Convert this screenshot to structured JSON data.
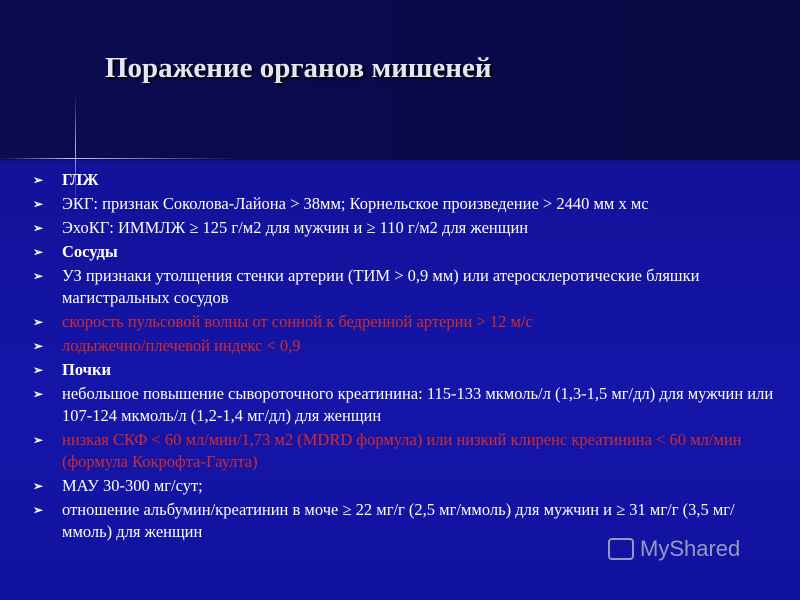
{
  "title": "Поражение органов мишеней",
  "bullet_glyph": "➢",
  "items": [
    {
      "text": "ГЛЖ",
      "style": "bold"
    },
    {
      "text": "ЭКГ: признак Соколова-Лайона > 38мм; Корнельское произведение > 2440 мм х мс",
      "style": "normal"
    },
    {
      "text": "ЭхоКГ: ИММЛЖ ≥ 125 г/м2 для мужчин и ≥ 110 г/м2 для женщин",
      "style": "normal"
    },
    {
      "text": "Сосуды",
      "style": "bold"
    },
    {
      "text": "УЗ признаки утолщения стенки артерии (ТИМ > 0,9 мм) или атеросклеротические бляшки магистральных сосудов",
      "style": "normal"
    },
    {
      "text": "скорость пульсовой волны от сонной к бедренной артерии > 12 м/с",
      "style": "red"
    },
    {
      "text": "лодыжечно/плечевой индекс < 0,9",
      "style": "red"
    },
    {
      "text": "Почки",
      "style": "bold"
    },
    {
      "text": "небольшое повышение сывороточного креатинина: 115-133 мкмоль/л (1,3-1,5 мг/дл) для мужчин или 107-124 мкмоль/л (1,2-1,4 мг/дл) для женщин",
      "style": "normal"
    },
    {
      "text": "низкая СКФ < 60 мл/мин/1,73 м2 (MDRD формула) или низкий клиренс креатинина < 60 мл/мин (формула Кокрофта-Гаулта)",
      "style": "red"
    },
    {
      "text": "МАУ 30-300 мг/сут;",
      "style": "normal"
    },
    {
      "text": "отношение альбумин/креатинин в моче ≥ 22 мг/г (2,5 мг/ммоль) для мужчин и ≥ 31 мг/г (3,5 мг/ммоль) для женщин",
      "style": "normal"
    }
  ],
  "watermark": "MyShared",
  "colors": {
    "background": "#1515a8",
    "header": "#0b0b52",
    "text": "#ffffff",
    "highlight": "#d22b2b"
  }
}
